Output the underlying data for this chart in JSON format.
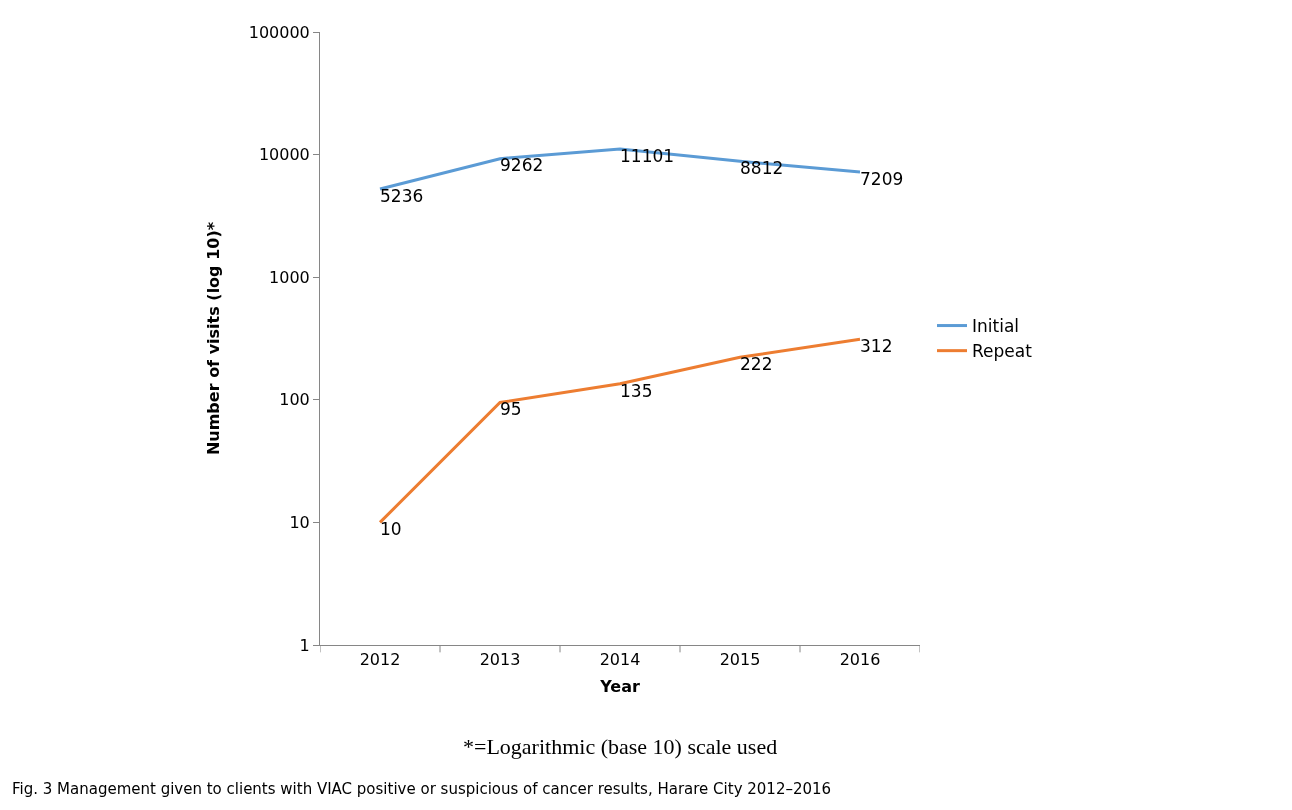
{
  "chart_data": {
    "type": "line",
    "xlabel": "Year",
    "ylabel": "Number of visits (log 10)*",
    "categories": [
      "2012",
      "2013",
      "2014",
      "2015",
      "2016"
    ],
    "series": [
      {
        "name": "Initial",
        "color": "#5b9bd5",
        "values": [
          5236,
          9262,
          11101,
          8812,
          7209
        ]
      },
      {
        "name": "Repeat",
        "color": "#ed7d31",
        "values": [
          10,
          95,
          135,
          222,
          312
        ]
      }
    ],
    "log": "y",
    "ylim": [
      1,
      100000
    ],
    "yticks": [
      1,
      10,
      100,
      1000,
      10000,
      100000
    ],
    "data_labels": true,
    "legend": "right",
    "grid": false,
    "marker": "none",
    "line_style": "solid",
    "annotations": [
      "*=Logarithmic (base 10) scale used",
      "Fig. 3 Management given to clients with VIAC positive or suspicious of cancer results, Harare City 2012–2016"
    ]
  }
}
